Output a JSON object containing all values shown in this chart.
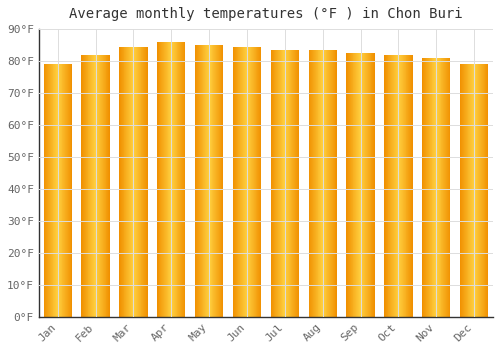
{
  "title": "Average monthly temperatures (°F ) in Chon Buri",
  "months": [
    "Jan",
    "Feb",
    "Mar",
    "Apr",
    "May",
    "Jun",
    "Jul",
    "Aug",
    "Sep",
    "Oct",
    "Nov",
    "Dec"
  ],
  "values": [
    79,
    82,
    84.5,
    86,
    85,
    84.5,
    83.5,
    83.5,
    82.5,
    82,
    81,
    79
  ],
  "ylim": [
    0,
    90
  ],
  "yticks": [
    0,
    10,
    20,
    30,
    40,
    50,
    60,
    70,
    80,
    90
  ],
  "bar_color_center": "#FFD040",
  "bar_color_edge": "#F09000",
  "background_color": "#FFFFFF",
  "grid_color": "#DDDDDD",
  "title_fontsize": 10,
  "tick_fontsize": 8,
  "font_family": "monospace"
}
